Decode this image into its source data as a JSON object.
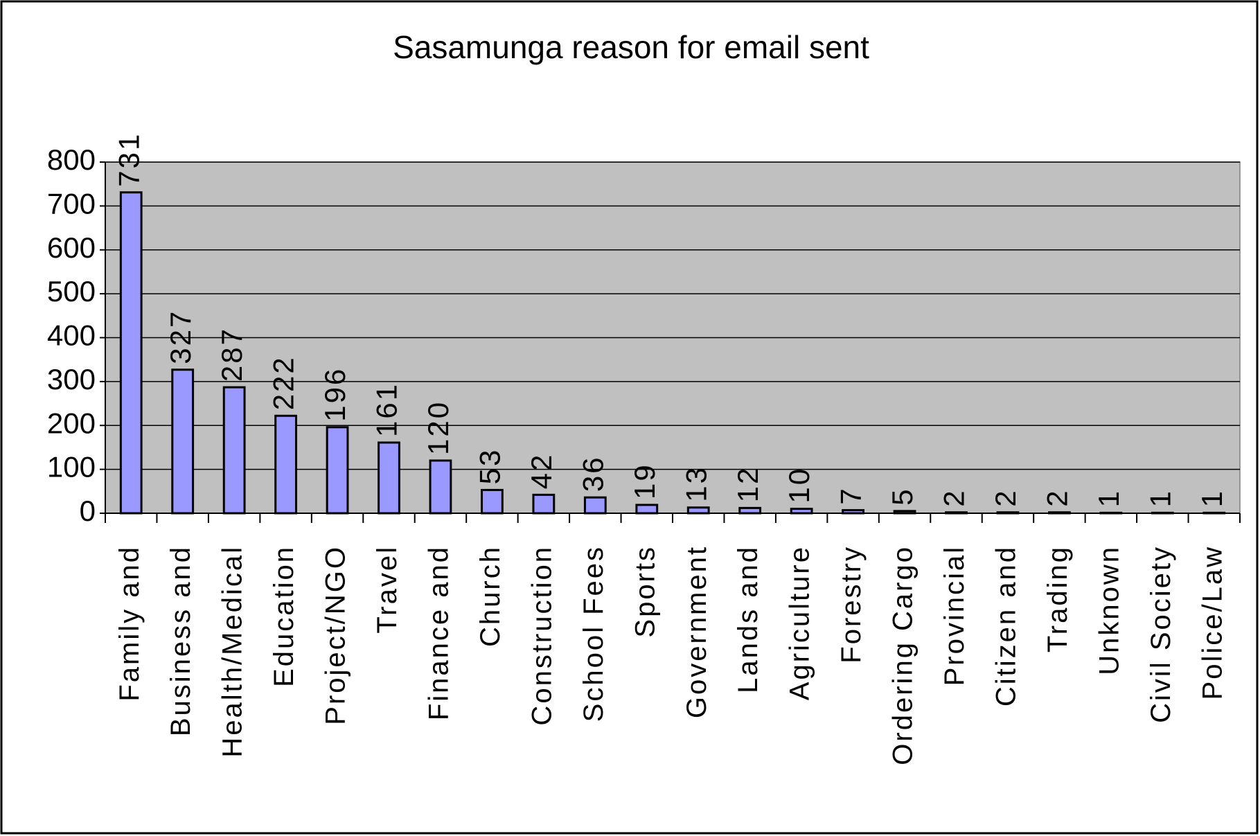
{
  "chart_data": {
    "type": "bar",
    "title": "Sasamunga reason for email sent",
    "categories": [
      "Family and",
      "Business and",
      "Health/Medical",
      "Education",
      "Project/NGO",
      "Travel",
      "Finance and",
      "Church",
      "Construction",
      "School Fees",
      "Sports",
      "Government",
      "Lands and",
      "Agriculture",
      "Forestry",
      "Ordering Cargo",
      "Provincial",
      "Citizen and",
      "Trading",
      "Unknown",
      "Civil Society",
      "Police/Law"
    ],
    "values": [
      731,
      327,
      287,
      222,
      196,
      161,
      120,
      53,
      42,
      36,
      19,
      13,
      12,
      10,
      7,
      5,
      2,
      2,
      2,
      1,
      1,
      1
    ],
    "color": "#9999ff",
    "ylim": [
      0,
      800
    ],
    "yticks": [
      0,
      100,
      200,
      300,
      400,
      500,
      600,
      700,
      800
    ],
    "grid": true
  }
}
